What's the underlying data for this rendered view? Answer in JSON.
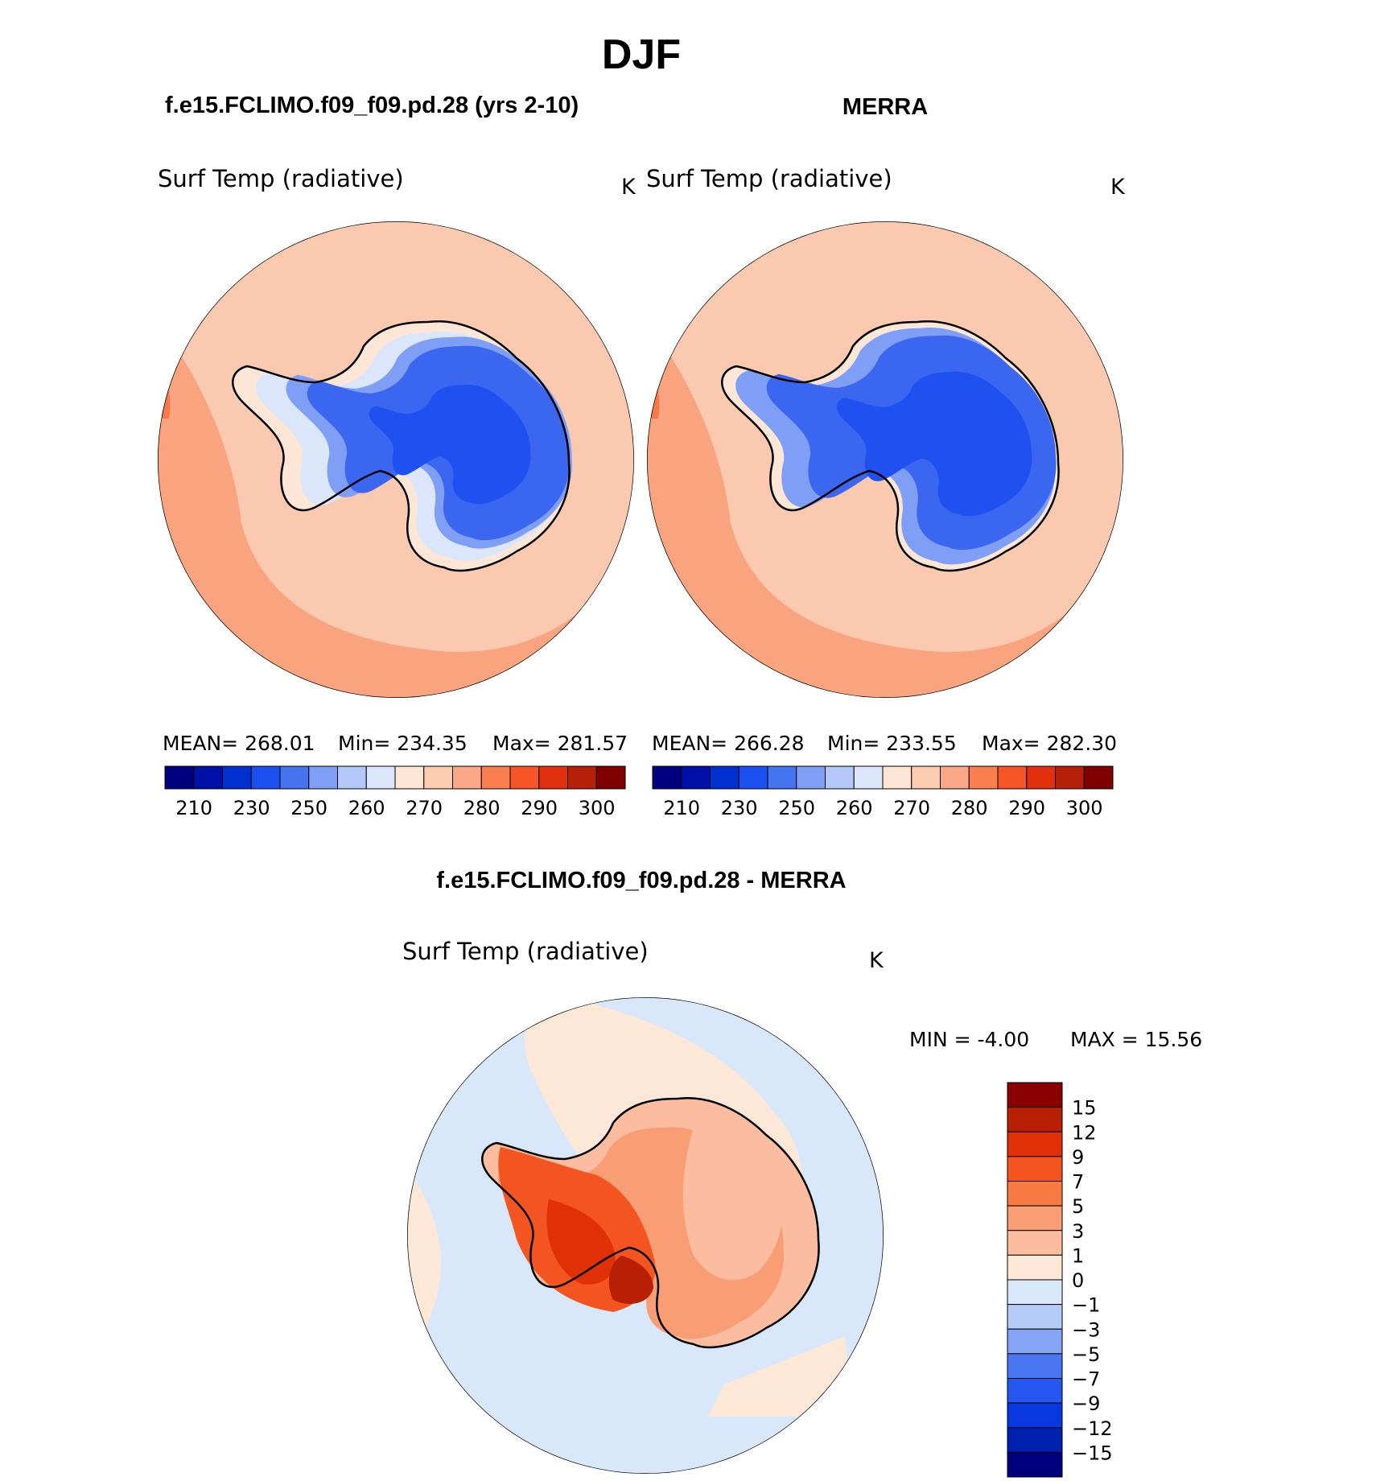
{
  "figure": {
    "title": "DJF",
    "left_title": "f.e15.FCLIMO.f09_f09.pd.28 (yrs 2-10)",
    "right_title": "MERRA",
    "diff_title": "f.e15.FCLIMO.f09_f09.pd.28 - MERRA"
  },
  "panels": {
    "left": {
      "var_label": "Surf Temp (radiative)",
      "units": "K",
      "stats": {
        "mean": "MEAN= 268.01",
        "min": "Min= 234.35",
        "max": "Max= 281.57"
      }
    },
    "right": {
      "var_label": "Surf Temp (radiative)",
      "units": "K",
      "stats": {
        "mean": "MEAN= 266.28",
        "min": "Min= 233.55",
        "max": "Max= 282.30"
      }
    },
    "diff": {
      "var_label": "Surf Temp (radiative)",
      "units": "K",
      "stats": {
        "min": "MIN = -4.00",
        "max": "MAX = 15.56"
      }
    }
  },
  "colors": {
    "abs_scale": [
      "#00007f",
      "#0010a8",
      "#0030d0",
      "#1a4ff0",
      "#4673f0",
      "#7f9ef6",
      "#b3c8f8",
      "#dbe6fa",
      "#fde6d6",
      "#fccbb0",
      "#fba888",
      "#fa7f4f",
      "#f75525",
      "#e03010",
      "#b52008",
      "#800000"
    ],
    "diff_scale": [
      "#00007f",
      "#0020b0",
      "#0838e0",
      "#2456f0",
      "#4a76f2",
      "#85a4f5",
      "#b5cbf8",
      "#d8e8fa",
      "#fde7d7",
      "#fbbca0",
      "#f99d75",
      "#f77a42",
      "#f35420",
      "#e03008",
      "#b82005",
      "#8a0000"
    ],
    "land_cold": "#3a66f0",
    "land_core": "#1f50f0",
    "ocean_warm": "#fbc9b0",
    "ocean_warmer": "#f9a47e",
    "coast": "#000000"
  },
  "chart_data": [
    {
      "type": "heatmap",
      "title": "f.e15.FCLIMO.f09_f09.pd.28 (yrs 2-10)",
      "variable": "Surf Temp (radiative)",
      "units": "K",
      "projection": "south-polar stereographic",
      "colorbar_labels": [
        "210",
        "230",
        "250",
        "260",
        "270",
        "280",
        "290",
        "300"
      ],
      "mean": 268.01,
      "min": 234.35,
      "max": 281.57
    },
    {
      "type": "heatmap",
      "title": "MERRA",
      "variable": "Surf Temp (radiative)",
      "units": "K",
      "projection": "south-polar stereographic",
      "colorbar_labels": [
        "210",
        "230",
        "250",
        "260",
        "270",
        "280",
        "290",
        "300"
      ],
      "mean": 266.28,
      "min": 233.55,
      "max": 282.3
    },
    {
      "type": "heatmap",
      "title": "f.e15.FCLIMO.f09_f09.pd.28 - MERRA",
      "variable": "Surf Temp (radiative)",
      "units": "K",
      "projection": "south-polar stereographic",
      "colorbar_labels": [
        "15",
        "12",
        "9",
        "7",
        "5",
        "3",
        "1",
        "0",
        "−1",
        "−3",
        "−5",
        "−7",
        "−9",
        "−12",
        "−15"
      ],
      "min": -4.0,
      "max": 15.56
    }
  ]
}
